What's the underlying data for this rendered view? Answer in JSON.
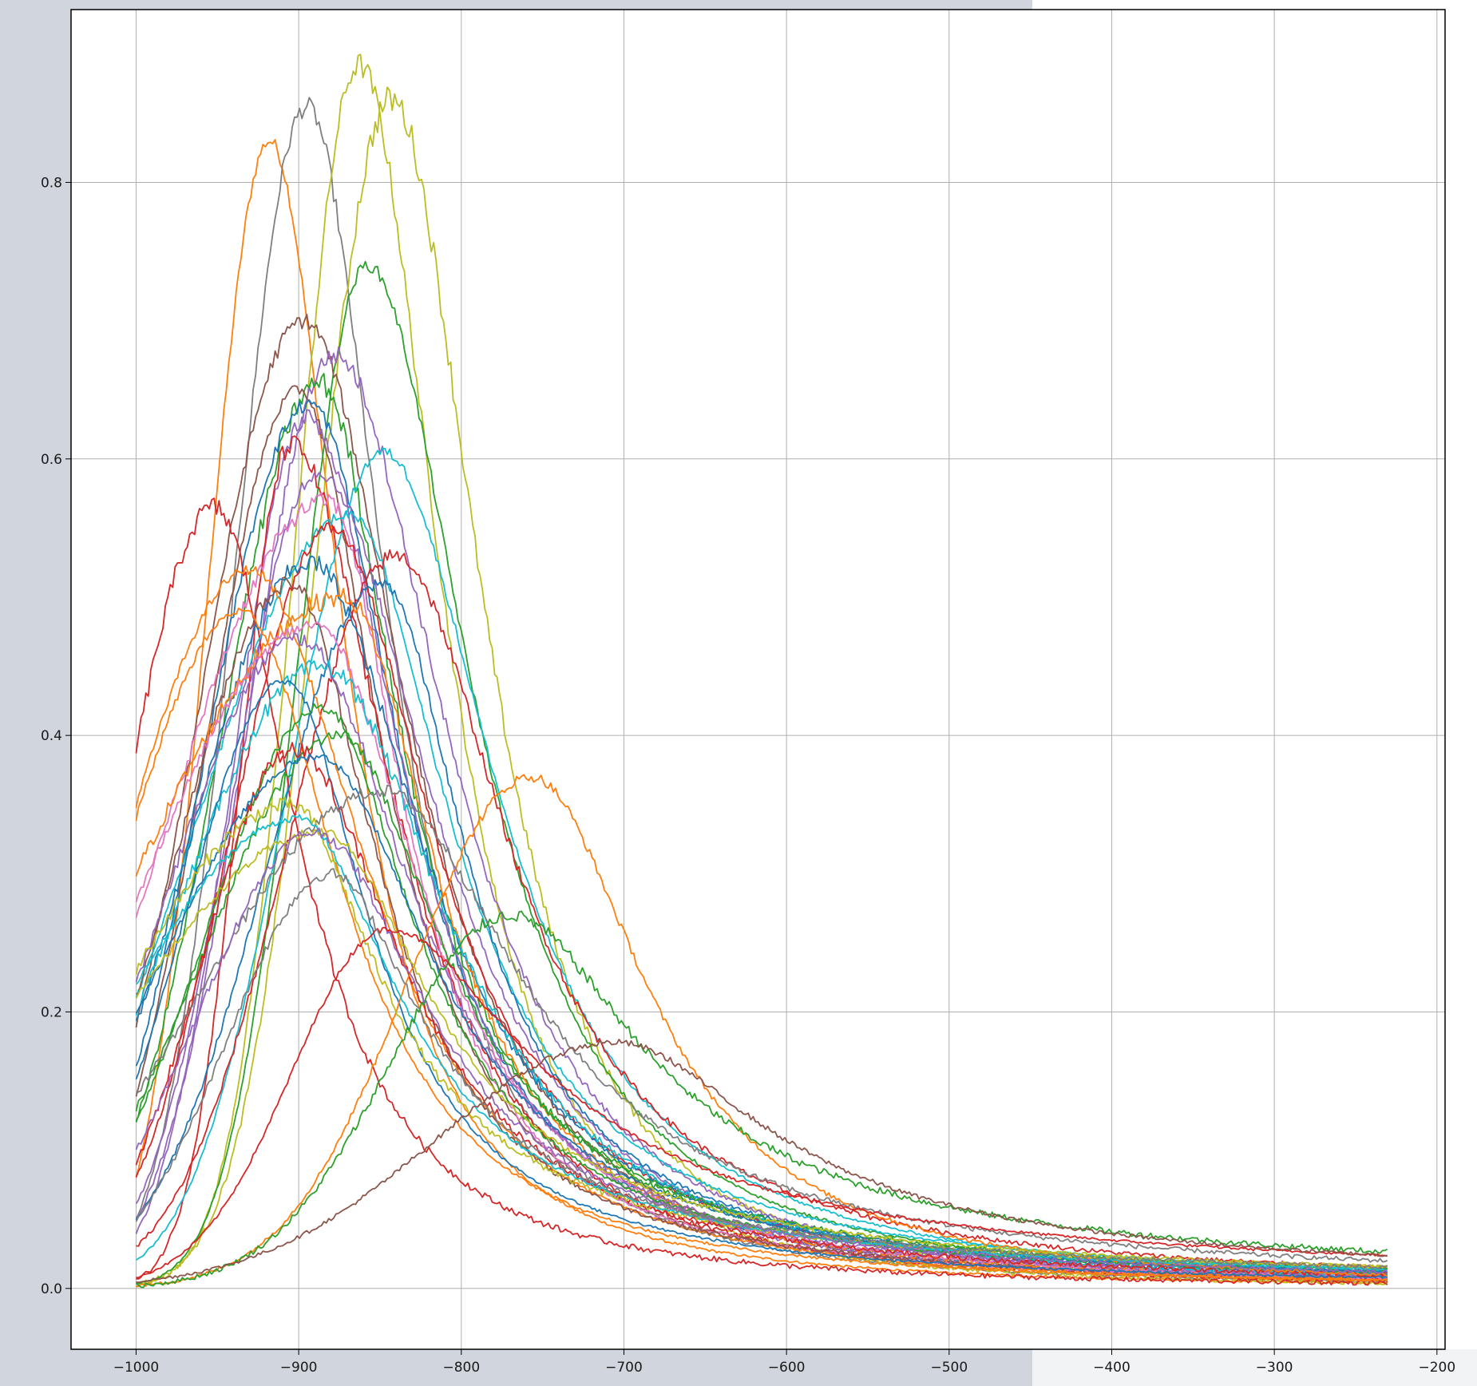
{
  "chart_data": {
    "type": "line",
    "title": "",
    "xlabel": "",
    "ylabel": "",
    "xlim": [
      -1040,
      -195
    ],
    "ylim": [
      -0.044,
      0.925
    ],
    "x_ticks": [
      -1000,
      -900,
      -800,
      -700,
      -600,
      -500,
      -400,
      -300,
      -200
    ],
    "y_ticks": [
      0.0,
      0.2,
      0.4,
      0.6,
      0.8
    ],
    "x_tick_labels": [
      "−1000",
      "−900",
      "−800",
      "−700",
      "−600",
      "−500",
      "−400",
      "−300",
      "−200"
    ],
    "y_tick_labels": [
      "0.0",
      "0.2",
      "0.4",
      "0.6",
      "0.8"
    ],
    "grid": true,
    "legend": "none",
    "x_start": -1000,
    "x_end": -230,
    "series_note_free": true,
    "series": [
      {
        "color": "#ff7f0e",
        "peak_x": -918,
        "peak_y": 0.83,
        "start_y": 0.08,
        "end_y": 0.004
      },
      {
        "color": "#7f7f7f",
        "peak_x": -895,
        "peak_y": 0.855,
        "start_y": 0.05,
        "end_y": 0.005
      },
      {
        "color": "#bcbd22",
        "peak_x": -863,
        "peak_y": 0.885,
        "start_y": 0.002,
        "end_y": 0.004
      },
      {
        "color": "#bcbd22",
        "peak_x": -843,
        "peak_y": 0.86,
        "start_y": 0.003,
        "end_y": 0.006
      },
      {
        "color": "#2ca02c",
        "peak_x": -858,
        "peak_y": 0.74,
        "start_y": 0.003,
        "end_y": 0.01
      },
      {
        "color": "#8c564b",
        "peak_x": -897,
        "peak_y": 0.7,
        "start_y": 0.19,
        "end_y": 0.006
      },
      {
        "color": "#9467bd",
        "peak_x": -878,
        "peak_y": 0.675,
        "start_y": 0.05,
        "end_y": 0.008
      },
      {
        "color": "#2ca02c",
        "peak_x": -887,
        "peak_y": 0.655,
        "start_y": 0.12,
        "end_y": 0.012
      },
      {
        "color": "#8c564b",
        "peak_x": -900,
        "peak_y": 0.65,
        "start_y": 0.14,
        "end_y": 0.007
      },
      {
        "color": "#1f77b4",
        "peak_x": -893,
        "peak_y": 0.64,
        "start_y": 0.16,
        "end_y": 0.008
      },
      {
        "color": "#9467bd",
        "peak_x": -895,
        "peak_y": 0.63,
        "start_y": 0.04,
        "end_y": 0.007
      },
      {
        "color": "#d62728",
        "peak_x": -905,
        "peak_y": 0.61,
        "start_y": 0.006,
        "end_y": 0.006
      },
      {
        "color": "#17becf",
        "peak_x": -848,
        "peak_y": 0.605,
        "start_y": 0.02,
        "end_y": 0.012
      },
      {
        "color": "#9467bd",
        "peak_x": -888,
        "peak_y": 0.59,
        "start_y": 0.06,
        "end_y": 0.008
      },
      {
        "color": "#e377c2",
        "peak_x": -882,
        "peak_y": 0.57,
        "start_y": 0.27,
        "end_y": 0.007
      },
      {
        "color": "#d62728",
        "peak_x": -952,
        "peak_y": 0.565,
        "start_y": 0.39,
        "end_y": 0.004
      },
      {
        "color": "#17becf",
        "peak_x": -868,
        "peak_y": 0.56,
        "start_y": 0.21,
        "end_y": 0.014
      },
      {
        "color": "#d62728",
        "peak_x": -880,
        "peak_y": 0.55,
        "start_y": 0.08,
        "end_y": 0.01
      },
      {
        "color": "#d62728",
        "peak_x": -840,
        "peak_y": 0.53,
        "start_y": 0.03,
        "end_y": 0.015
      },
      {
        "color": "#1f77b4",
        "peak_x": -893,
        "peak_y": 0.525,
        "start_y": 0.19,
        "end_y": 0.01
      },
      {
        "color": "#ff7f0e",
        "peak_x": -930,
        "peak_y": 0.52,
        "start_y": 0.35,
        "end_y": 0.006
      },
      {
        "color": "#1f77b4",
        "peak_x": -848,
        "peak_y": 0.51,
        "start_y": 0.05,
        "end_y": 0.012
      },
      {
        "color": "#8c564b",
        "peak_x": -905,
        "peak_y": 0.51,
        "start_y": 0.21,
        "end_y": 0.008
      },
      {
        "color": "#ff7f0e",
        "peak_x": -872,
        "peak_y": 0.5,
        "start_y": 0.3,
        "end_y": 0.008
      },
      {
        "color": "#ff7f0e",
        "peak_x": -935,
        "peak_y": 0.49,
        "start_y": 0.34,
        "end_y": 0.006
      },
      {
        "color": "#e377c2",
        "peak_x": -890,
        "peak_y": 0.48,
        "start_y": 0.28,
        "end_y": 0.008
      },
      {
        "color": "#9467bd",
        "peak_x": -900,
        "peak_y": 0.47,
        "start_y": 0.22,
        "end_y": 0.009
      },
      {
        "color": "#17becf",
        "peak_x": -885,
        "peak_y": 0.45,
        "start_y": 0.2,
        "end_y": 0.01
      },
      {
        "color": "#1f77b4",
        "peak_x": -908,
        "peak_y": 0.44,
        "start_y": 0.15,
        "end_y": 0.008
      },
      {
        "color": "#2ca02c",
        "peak_x": -885,
        "peak_y": 0.42,
        "start_y": 0.12,
        "end_y": 0.012
      },
      {
        "color": "#2ca02c",
        "peak_x": -875,
        "peak_y": 0.4,
        "start_y": 0.13,
        "end_y": 0.014
      },
      {
        "color": "#d62728",
        "peak_x": -903,
        "peak_y": 0.39,
        "start_y": 0.09,
        "end_y": 0.01
      },
      {
        "color": "#1f77b4",
        "peak_x": -888,
        "peak_y": 0.385,
        "start_y": 0.2,
        "end_y": 0.012
      },
      {
        "color": "#ff7f0e",
        "peak_x": -757,
        "peak_y": 0.37,
        "start_y": 0.002,
        "end_y": 0.01
      },
      {
        "color": "#7f7f7f",
        "peak_x": -848,
        "peak_y": 0.36,
        "start_y": 0.14,
        "end_y": 0.02
      },
      {
        "color": "#bcbd22",
        "peak_x": -905,
        "peak_y": 0.35,
        "start_y": 0.23,
        "end_y": 0.015
      },
      {
        "color": "#17becf",
        "peak_x": -900,
        "peak_y": 0.34,
        "start_y": 0.22,
        "end_y": 0.014
      },
      {
        "color": "#bcbd22",
        "peak_x": -885,
        "peak_y": 0.33,
        "start_y": 0.21,
        "end_y": 0.016
      },
      {
        "color": "#9467bd",
        "peak_x": -890,
        "peak_y": 0.33,
        "start_y": 0.1,
        "end_y": 0.012
      },
      {
        "color": "#2ca02c",
        "peak_x": -770,
        "peak_y": 0.27,
        "start_y": 0.002,
        "end_y": 0.062
      },
      {
        "color": "#d62728",
        "peak_x": -845,
        "peak_y": 0.26,
        "start_y": 0.008,
        "end_y": 0.026
      },
      {
        "color": "#8c564b",
        "peak_x": -705,
        "peak_y": 0.178,
        "start_y": 0.005,
        "end_y": 0.068
      },
      {
        "color": "#7f7f7f",
        "peak_x": -880,
        "peak_y": 0.3,
        "start_y": 0.05,
        "end_y": 0.02
      }
    ]
  }
}
